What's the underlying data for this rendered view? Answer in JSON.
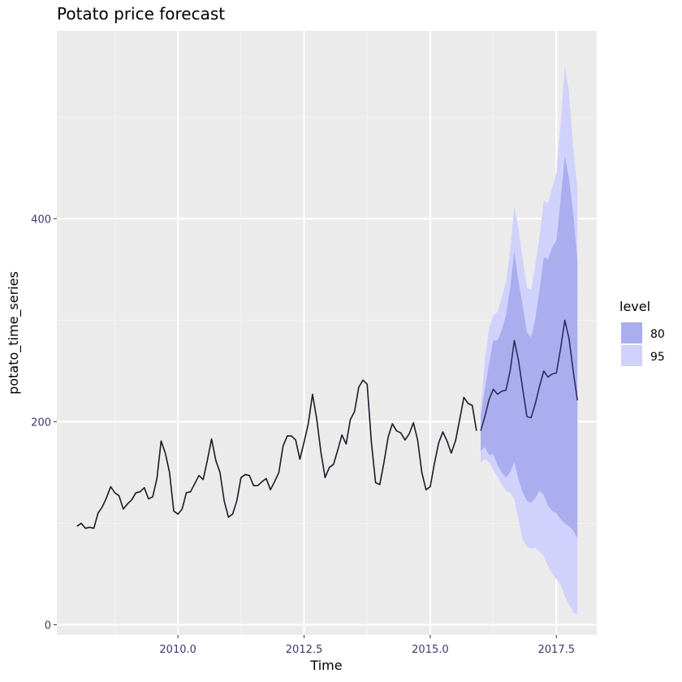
{
  "chart_data": {
    "type": "line",
    "title": "Potato price forecast",
    "xlabel": "Time",
    "ylabel": "potato_time_series",
    "xlim": [
      2007.6,
      2018.3
    ],
    "ylim": [
      -10,
      585
    ],
    "x_ticks": [
      2010.0,
      2012.5,
      2015.0,
      2017.5
    ],
    "x_tick_labels": [
      "2010.0",
      "2012.5",
      "2015.0",
      "2017.5"
    ],
    "y_ticks": [
      0,
      200,
      400
    ],
    "y_tick_labels": [
      "0",
      "200",
      "400"
    ],
    "grid": true,
    "legend": {
      "title": "level",
      "placement": "right",
      "items": [
        {
          "label": "80",
          "color": "#aaaeee"
        },
        {
          "label": "95",
          "color": "#d0d2fb"
        }
      ]
    },
    "colors": {
      "panel": "#ebebeb",
      "grid_major": "#ffffff",
      "grid_minor": "#f4f4f4",
      "history_line": "#1a1a2a",
      "forecast_line": "#2c2c5e",
      "band80": "#aaaeee",
      "band95": "#d0d2fb"
    },
    "history": {
      "start": 2008.0,
      "frequency": 12,
      "values": [
        97,
        100,
        95,
        96,
        95,
        110,
        116,
        125,
        136,
        130,
        127,
        114,
        119,
        123,
        130,
        131,
        135,
        124,
        126,
        144,
        181,
        169,
        150,
        112,
        109,
        114,
        130,
        131,
        139,
        147,
        143,
        162,
        183,
        162,
        150,
        122,
        106,
        109,
        122,
        145,
        148,
        147,
        137,
        137,
        141,
        144,
        133,
        141,
        150,
        176,
        186,
        186,
        182,
        163,
        180,
        198,
        227,
        203,
        170,
        145,
        155,
        158,
        172,
        187,
        178,
        202,
        210,
        234,
        241,
        237,
        180,
        140,
        138,
        160,
        185,
        198,
        191,
        189,
        182,
        188,
        199,
        182,
        150,
        133,
        136,
        159,
        179,
        190,
        181,
        169,
        181,
        202,
        224,
        218,
        216,
        191
      ]
    },
    "forecast": {
      "start": 2016.0,
      "frequency": 12,
      "mean": [
        191,
        205,
        222,
        232,
        227,
        230,
        231,
        250,
        280,
        260,
        232,
        205,
        204,
        218,
        235,
        250,
        244,
        247,
        248,
        272,
        300,
        282,
        250,
        221
      ],
      "lo80": [
        171,
        175,
        167,
        168,
        157,
        150,
        145,
        150,
        160,
        143,
        130,
        122,
        120,
        125,
        132,
        128,
        117,
        112,
        110,
        104,
        100,
        97,
        93,
        85
      ],
      "hi80": [
        205,
        232,
        258,
        280,
        280,
        290,
        305,
        332,
        368,
        338,
        314,
        288,
        283,
        302,
        330,
        362,
        360,
        372,
        378,
        418,
        462,
        440,
        405,
        360
      ],
      "lo95": [
        160,
        163,
        160,
        152,
        146,
        138,
        132,
        130,
        124,
        102,
        84,
        77,
        75,
        76,
        72,
        68,
        58,
        50,
        45,
        40,
        28,
        20,
        12,
        10
      ],
      "hi95": [
        212,
        262,
        292,
        305,
        308,
        323,
        338,
        368,
        412,
        390,
        360,
        332,
        330,
        355,
        383,
        418,
        415,
        430,
        445,
        493,
        550,
        525,
        470,
        430
      ]
    }
  }
}
